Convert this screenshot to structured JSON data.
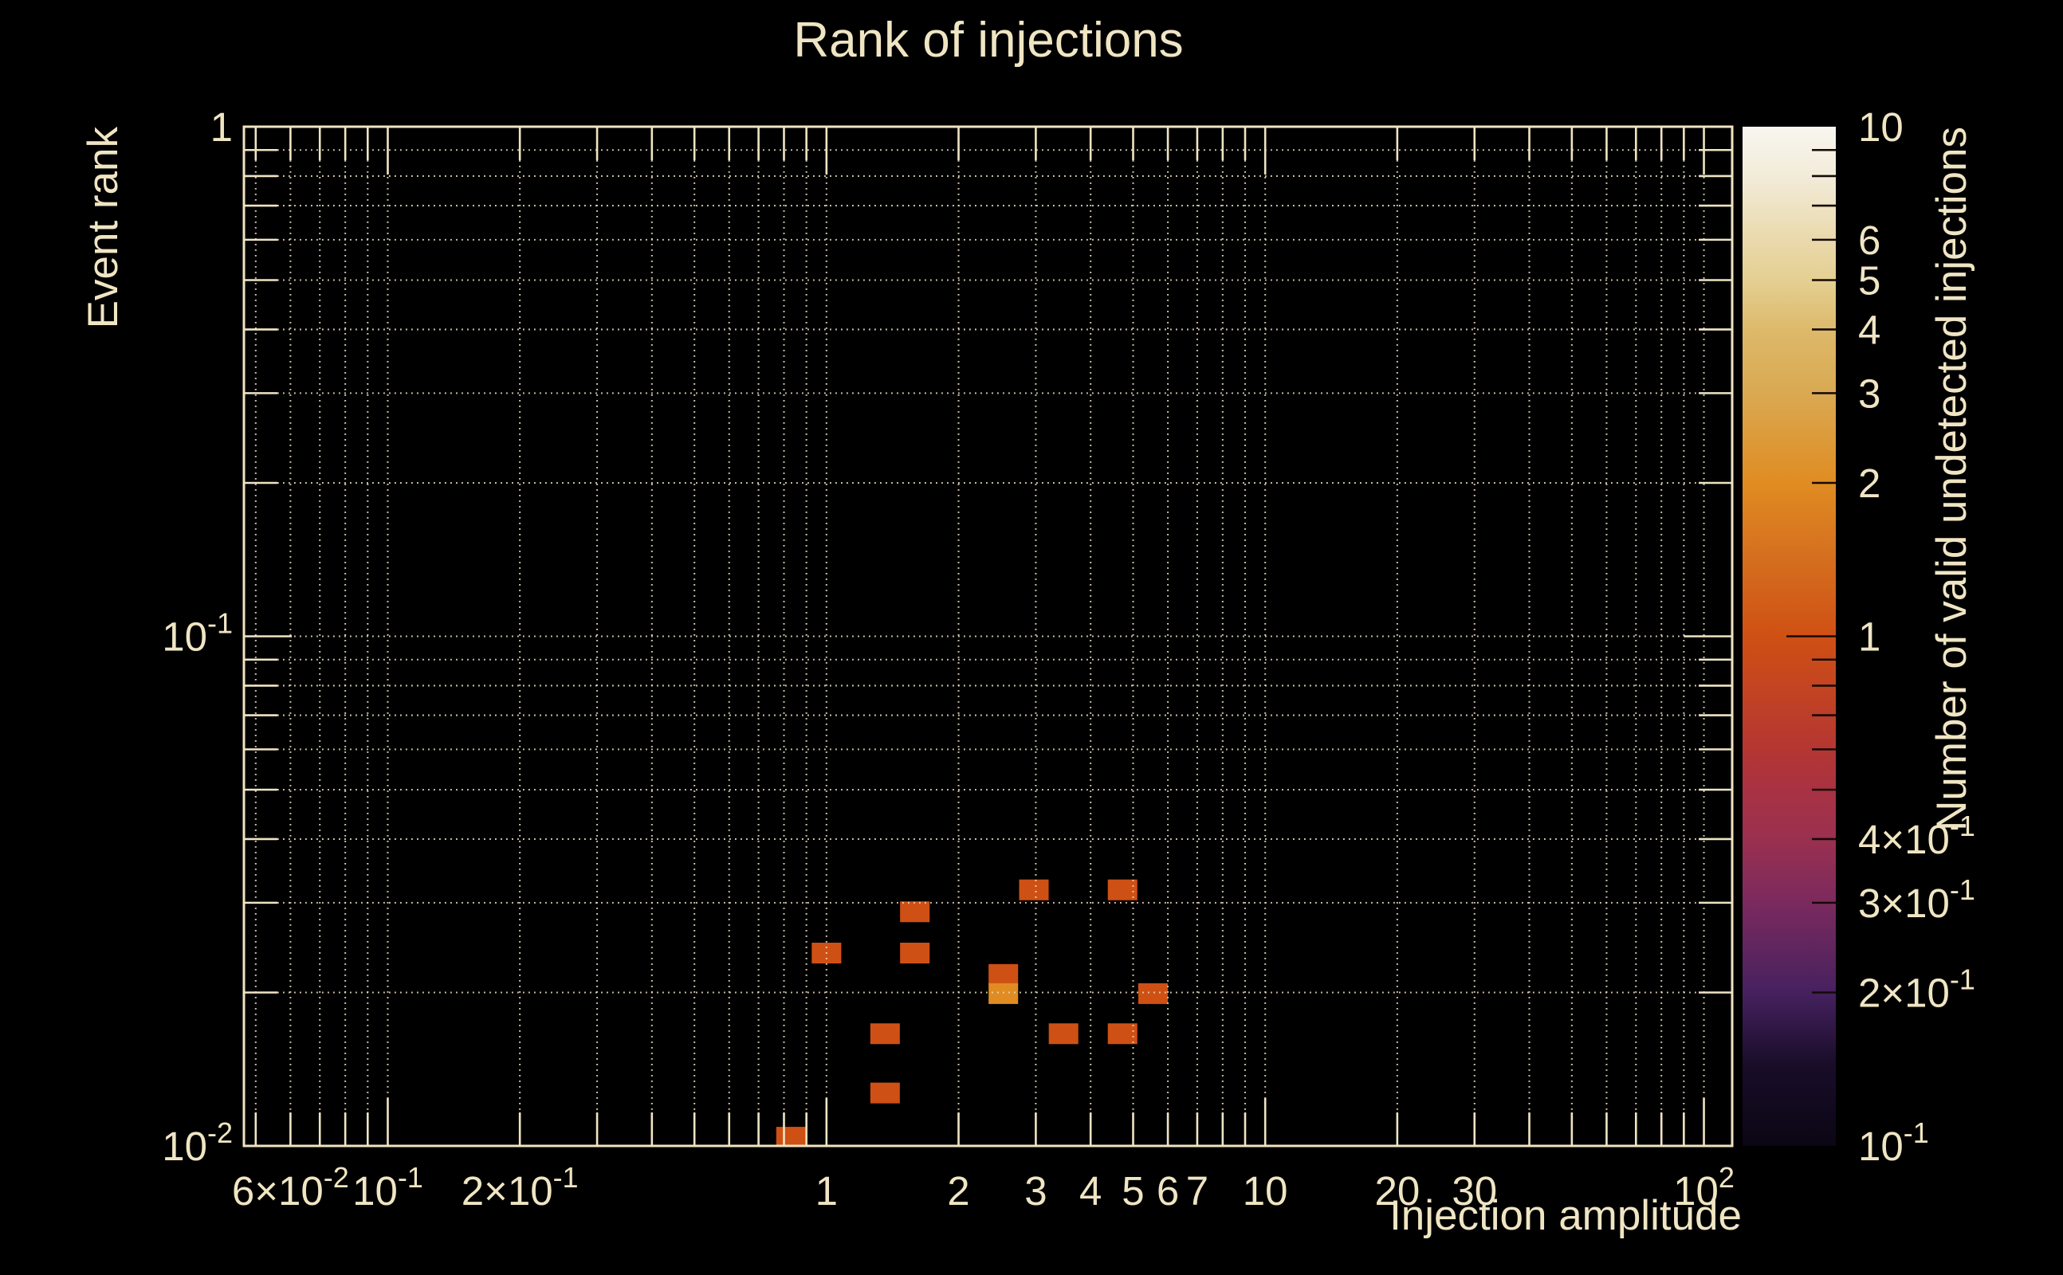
{
  "title": "Rank of injections",
  "colors": {
    "background": "#000000",
    "foreground": "#f0e5c3",
    "grid": "#eadec0",
    "frame": "#efe4c2",
    "colorbar_tick": "#140a06"
  },
  "chart_data": {
    "type": "heatmap",
    "title": "Rank of injections",
    "xlabel": "Injection amplitude",
    "ylabel": "Event rank",
    "x_scale": "log",
    "y_scale": "log",
    "xlim": [
      0.047,
      116
    ],
    "ylim": [
      0.01,
      1
    ],
    "grid": "dotted lines at every log tick, both axes",
    "legend_position": "none",
    "x_tick_labels": [
      {
        "v": 0.06,
        "label": "6×10^{-2}"
      },
      {
        "v": 0.1,
        "label": "10^{-1}"
      },
      {
        "v": 0.2,
        "label": "2×10^{-1}"
      },
      {
        "v": 1,
        "label": "1"
      },
      {
        "v": 2,
        "label": "2"
      },
      {
        "v": 3,
        "label": "3"
      },
      {
        "v": 4,
        "label": "4"
      },
      {
        "v": 5,
        "label": "5"
      },
      {
        "v": 6,
        "label": "6"
      },
      {
        "v": 7,
        "label": "7"
      },
      {
        "v": 10,
        "label": "10"
      },
      {
        "v": 20,
        "label": "20"
      },
      {
        "v": 30,
        "label": "30"
      },
      {
        "v": 100,
        "label": "10^{2}"
      }
    ],
    "y_tick_labels": [
      {
        "v": 1,
        "label": "1"
      },
      {
        "v": 0.1,
        "label": "10^{-1}"
      },
      {
        "v": 0.01,
        "label": "10^{-2}"
      }
    ],
    "cell_size_decades": {
      "x": 0.0673,
      "y": 0.0407
    },
    "cells": [
      {
        "x": 0.83,
        "y": 0.0104,
        "count": 1
      },
      {
        "x": 1.0,
        "y": 0.0239,
        "count": 1
      },
      {
        "x": 1.36,
        "y": 0.0166,
        "count": 1
      },
      {
        "x": 1.36,
        "y": 0.0127,
        "count": 1
      },
      {
        "x": 1.59,
        "y": 0.0288,
        "count": 1
      },
      {
        "x": 1.59,
        "y": 0.0239,
        "count": 1
      },
      {
        "x": 2.53,
        "y": 0.0217,
        "count": 1
      },
      {
        "x": 2.53,
        "y": 0.0199,
        "count": 2
      },
      {
        "x": 2.97,
        "y": 0.0318,
        "count": 1
      },
      {
        "x": 3.47,
        "y": 0.0166,
        "count": 1
      },
      {
        "x": 4.73,
        "y": 0.0318,
        "count": 1
      },
      {
        "x": 4.73,
        "y": 0.0166,
        "count": 1
      },
      {
        "x": 5.55,
        "y": 0.0199,
        "count": 1
      }
    ],
    "colorbar": {
      "label": "Number of valid undetected injections",
      "lim": [
        0.1,
        10
      ],
      "scale": "log",
      "tick_labels": [
        {
          "v": 10,
          "label": "10"
        },
        {
          "v": 6,
          "label": "6"
        },
        {
          "v": 5,
          "label": "5"
        },
        {
          "v": 4,
          "label": "4"
        },
        {
          "v": 3,
          "label": "3"
        },
        {
          "v": 2,
          "label": "2"
        },
        {
          "v": 1,
          "label": "1"
        },
        {
          "v": 0.4,
          "label": "4×10^{-1}"
        },
        {
          "v": 0.3,
          "label": "3×10^{-1}"
        },
        {
          "v": 0.2,
          "label": "2×10^{-1}"
        },
        {
          "v": 0.1,
          "label": "10^{-1}"
        }
      ],
      "gradient_stops": [
        [
          0.0,
          "#0b0614"
        ],
        [
          0.08,
          "#190d29"
        ],
        [
          0.151,
          "#46215f"
        ],
        [
          0.239,
          "#7b2a5e"
        ],
        [
          0.301,
          "#9a3050"
        ],
        [
          0.349,
          "#a83243"
        ],
        [
          0.39,
          "#b53632"
        ],
        [
          0.5,
          "#cf5014"
        ],
        [
          0.58,
          "#d5701f"
        ],
        [
          0.651,
          "#e08c22"
        ],
        [
          0.739,
          "#d9a952"
        ],
        [
          0.8,
          "#ddb96a"
        ],
        [
          0.849,
          "#e4cf92"
        ],
        [
          0.889,
          "#ead9ac"
        ],
        [
          0.95,
          "#f2ebd8"
        ],
        [
          1.0,
          "#f8f6f0"
        ]
      ]
    }
  }
}
